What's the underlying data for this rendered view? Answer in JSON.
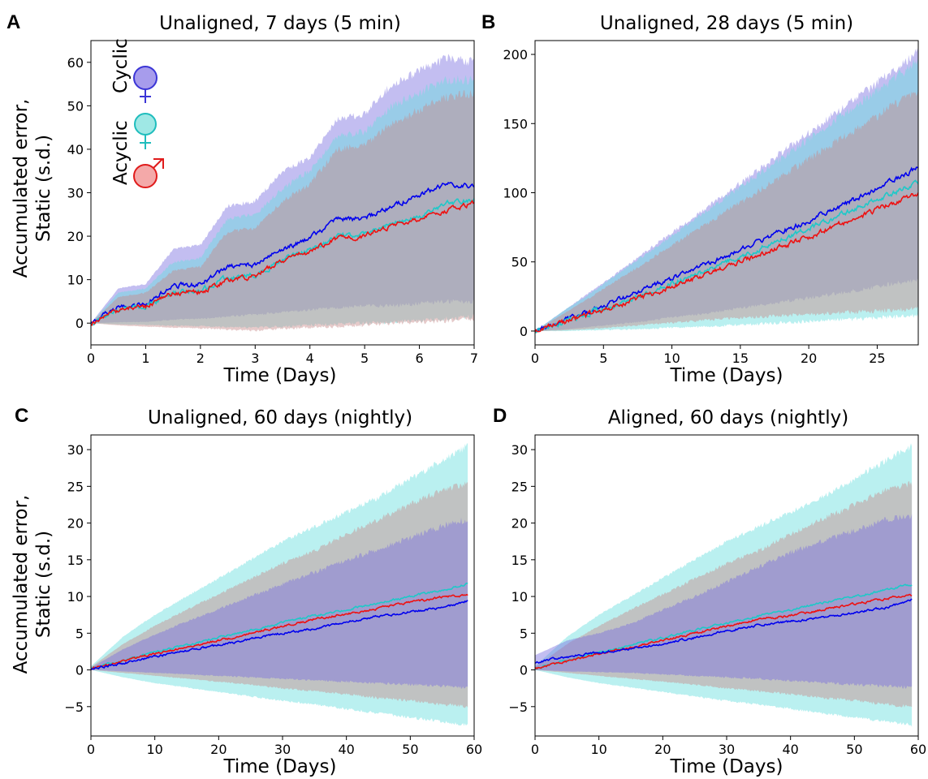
{
  "colors": {
    "cyclic": "#0000ee",
    "cyclic_band": "#7b6fe0",
    "acyclic": "#1fc8c8",
    "acyclic_band": "#66dede",
    "male": "#ee1111",
    "male_band": "#c88a8a",
    "overlap": "#a793c0"
  },
  "legend": {
    "cyclic_label": "Cyclic",
    "acyclic_label": "Acyclic",
    "cyclic_icon": "female-symbol-icon",
    "acyclic_icon": "female-symbol-icon",
    "male_icon": "male-symbol-icon"
  },
  "panels": {
    "A": {
      "letter": "A",
      "title": "Unaligned, 7 days (5 min)",
      "xlabel": "Time (Days)",
      "ylabel_line1": "Accumulated error,",
      "ylabel_line2": "Static (s.d.)"
    },
    "B": {
      "letter": "B",
      "title": "Unaligned, 28 days (5 min)",
      "xlabel": "Time (Days)"
    },
    "C": {
      "letter": "C",
      "title": "Unaligned, 60 days (nightly)",
      "xlabel": "Time (Days)",
      "ylabel_line1": "Accumulated error,",
      "ylabel_line2": "Static (s.d.)"
    },
    "D": {
      "letter": "D",
      "title": "Aligned, 60 days (nightly)",
      "xlabel": "Time (Days)"
    }
  },
  "chart_data": [
    {
      "panel": "A",
      "type": "line",
      "title": "Unaligned, 7 days (5 min)",
      "xlabel": "Time (Days)",
      "ylabel": "Accumulated error, Static (s.d.)",
      "xlim": [
        0,
        7
      ],
      "ylim": [
        -5,
        65
      ],
      "xticks": [
        0,
        1,
        2,
        3,
        4,
        5,
        6,
        7
      ],
      "yticks": [
        0,
        10,
        20,
        30,
        40,
        50,
        60
      ],
      "noise": 0.45,
      "band_noise": 1.2,
      "x": [
        0,
        0.5,
        1,
        1.5,
        2,
        2.5,
        3,
        3.5,
        4,
        4.5,
        5,
        5.5,
        6,
        6.5,
        7
      ],
      "series": [
        {
          "key": "cyclic",
          "mean": [
            0,
            3.5,
            4.5,
            8.5,
            9,
            13,
            13.5,
            17,
            19.5,
            24,
            24,
            27,
            29.5,
            32,
            31.5
          ],
          "upper": [
            0,
            8,
            9,
            17,
            18,
            27,
            28,
            35,
            38,
            47,
            48,
            55,
            58,
            61,
            60
          ],
          "lower": [
            0,
            0.2,
            0.3,
            0.8,
            1,
            1.5,
            2,
            2.5,
            3,
            3.5,
            4,
            4,
            4.5,
            5,
            5
          ]
        },
        {
          "key": "acyclic",
          "mean": [
            0,
            3,
            4,
            7,
            7.5,
            10.5,
            11,
            14.5,
            17,
            20,
            20.5,
            23,
            24.5,
            27.5,
            28.5
          ],
          "upper": [
            0,
            7,
            8,
            14,
            15,
            24,
            25,
            31,
            35,
            43,
            44,
            50,
            53,
            56,
            56
          ],
          "lower": [
            0,
            -0.3,
            -0.4,
            -0.6,
            -0.7,
            -0.9,
            -1,
            -0.8,
            -0.5,
            -0.2,
            0,
            0.3,
            0.6,
            1,
            1.5
          ]
        },
        {
          "key": "male",
          "mean": [
            0,
            3,
            3.8,
            7,
            7.2,
            10,
            10.8,
            14.5,
            16.5,
            19.5,
            20,
            22.5,
            24,
            26,
            27.5
          ],
          "upper": [
            0,
            6,
            7,
            12,
            13,
            21,
            22,
            28,
            32,
            40,
            41,
            46,
            49,
            52,
            53
          ],
          "lower": [
            0,
            -0.5,
            -0.8,
            -1,
            -1.2,
            -1.5,
            -1.7,
            -1.3,
            -1,
            -0.8,
            -0.5,
            0,
            0.2,
            0.5,
            1
          ]
        }
      ]
    },
    {
      "panel": "B",
      "type": "line",
      "title": "Unaligned, 28 days (5 min)",
      "xlabel": "Time (Days)",
      "ylabel": "",
      "xlim": [
        0,
        28
      ],
      "ylim": [
        -10,
        210
      ],
      "xticks": [
        0,
        5,
        10,
        15,
        20,
        25
      ],
      "yticks": [
        0,
        50,
        100,
        150,
        200
      ],
      "noise": 1.5,
      "band_noise": 4,
      "x": [
        0,
        2,
        4,
        6,
        8,
        10,
        12,
        14,
        16,
        18,
        20,
        22,
        24,
        26,
        28
      ],
      "series": [
        {
          "key": "cyclic",
          "mean": [
            0,
            7,
            14,
            22,
            30,
            38,
            46,
            55,
            63,
            72,
            80,
            89,
            98,
            108,
            118
          ],
          "upper": [
            0,
            14,
            28,
            42,
            57,
            71,
            85,
            100,
            114,
            129,
            143,
            158,
            172,
            187,
            202
          ],
          "lower": [
            0,
            1,
            3,
            5,
            7,
            10,
            12,
            15,
            18,
            21,
            24,
            27,
            30,
            34,
            37
          ]
        },
        {
          "key": "acyclic",
          "mean": [
            0,
            6,
            13,
            20,
            27,
            35,
            42,
            50,
            58,
            66,
            74,
            82,
            91,
            99,
            107
          ],
          "upper": [
            0,
            14,
            27,
            41,
            55,
            69,
            83,
            97,
            111,
            125,
            139,
            153,
            167,
            181,
            195
          ],
          "lower": [
            0,
            0,
            0.5,
            1,
            1.5,
            2.5,
            3,
            4,
            5,
            6,
            7,
            8,
            9,
            10,
            11
          ]
        },
        {
          "key": "male",
          "mean": [
            0,
            6,
            12,
            18,
            25,
            32,
            39,
            46,
            54,
            61,
            68,
            76,
            84,
            92,
            100
          ],
          "upper": [
            0,
            12,
            24,
            37,
            49,
            62,
            74,
            87,
            99,
            112,
            124,
            137,
            149,
            162,
            174
          ],
          "lower": [
            0,
            0.5,
            1.5,
            3,
            4.5,
            6,
            7.5,
            9,
            10,
            11,
            12,
            13,
            14,
            15,
            16
          ]
        }
      ]
    },
    {
      "panel": "C",
      "type": "line",
      "title": "Unaligned, 60 days (nightly)",
      "xlabel": "Time (Days)",
      "ylabel": "Accumulated error, Static (s.d.)",
      "xlim": [
        0,
        60
      ],
      "ylim": [
        -9,
        32
      ],
      "xticks": [
        0,
        10,
        20,
        30,
        40,
        50,
        60
      ],
      "yticks": [
        -5,
        0,
        5,
        10,
        15,
        20,
        25,
        30
      ],
      "noise": 0.12,
      "band_noise": 0.5,
      "x": [
        0,
        5,
        10,
        15,
        20,
        25,
        30,
        35,
        40,
        45,
        50,
        55,
        59
      ],
      "series": [
        {
          "key": "acyclic",
          "mean": [
            0.2,
            1.3,
            2.4,
            3.4,
            4.4,
            5.4,
            6.4,
            7.4,
            8.2,
            9.1,
            10,
            10.9,
            11.7
          ],
          "upper": [
            0.5,
            4.5,
            7.5,
            10,
            12.5,
            15,
            17.5,
            19.5,
            21.5,
            23.5,
            26,
            28.5,
            30.5
          ],
          "lower": [
            0,
            -1,
            -1.8,
            -2.4,
            -3,
            -3.6,
            -4.2,
            -4.7,
            -5.3,
            -5.9,
            -6.5,
            -7,
            -7.5
          ]
        },
        {
          "key": "male",
          "mean": [
            0.2,
            1.2,
            2.2,
            3.1,
            4.0,
            5.0,
            5.9,
            6.9,
            7.6,
            8.4,
            9.2,
            9.9,
            10.2
          ],
          "upper": [
            0.4,
            3.5,
            6,
            8.2,
            10.3,
            12.4,
            14.5,
            16.2,
            18.5,
            20.5,
            22.5,
            24.5,
            25.5
          ],
          "lower": [
            0,
            -0.4,
            -0.8,
            -1.2,
            -1.6,
            -2,
            -2.5,
            -2.9,
            -3.3,
            -3.8,
            -4.2,
            -4.7,
            -5
          ]
        },
        {
          "key": "cyclic",
          "mean": [
            0.1,
            0.9,
            1.8,
            2.6,
            3.4,
            4.2,
            5.0,
            5.6,
            6.5,
            7.3,
            7.9,
            8.5,
            9.4
          ],
          "upper": [
            0.3,
            2.8,
            4.8,
            6.6,
            8.3,
            10,
            11.7,
            13.3,
            14.9,
            16.5,
            18,
            19.6,
            20.5
          ],
          "lower": [
            0,
            -0.2,
            -0.4,
            -0.6,
            -0.8,
            -1,
            -1.2,
            -1.4,
            -1.6,
            -1.8,
            -2,
            -2.2,
            -2.4
          ]
        }
      ]
    },
    {
      "panel": "D",
      "type": "line",
      "title": "Aligned, 60 days (nightly)",
      "xlabel": "Time (Days)",
      "ylabel": "",
      "xlim": [
        0,
        60
      ],
      "ylim": [
        -9,
        32
      ],
      "xticks": [
        0,
        10,
        20,
        30,
        40,
        50,
        60
      ],
      "yticks": [
        -5,
        0,
        5,
        10,
        15,
        20,
        25,
        30
      ],
      "noise": 0.12,
      "band_noise": 0.5,
      "x": [
        0,
        5,
        10,
        15,
        20,
        25,
        30,
        35,
        40,
        45,
        50,
        55,
        59
      ],
      "series": [
        {
          "key": "acyclic",
          "mean": [
            0.2,
            1.3,
            2.4,
            3.4,
            4.4,
            5.4,
            6.4,
            7.4,
            8.2,
            9.1,
            10,
            10.9,
            11.7
          ],
          "upper": [
            0.5,
            4.5,
            7.5,
            10,
            12.5,
            15,
            17.5,
            19.5,
            21.5,
            23.5,
            26,
            28.5,
            30.5
          ],
          "lower": [
            0,
            -1,
            -1.8,
            -2.4,
            -3,
            -3.6,
            -4.2,
            -4.7,
            -5.3,
            -5.9,
            -6.5,
            -7,
            -7.5
          ]
        },
        {
          "key": "male",
          "mean": [
            0.2,
            1.2,
            2.2,
            3.1,
            4.0,
            5.0,
            5.9,
            6.9,
            7.4,
            8.2,
            9.0,
            9.7,
            10.2
          ],
          "upper": [
            0.4,
            3.5,
            6,
            8.2,
            10.3,
            12.4,
            14.5,
            16.2,
            18.5,
            20.5,
            22.5,
            24.5,
            25.5
          ],
          "lower": [
            0,
            -0.4,
            -0.8,
            -1.2,
            -1.6,
            -2,
            -2.5,
            -2.9,
            -3.3,
            -3.8,
            -4.2,
            -4.7,
            -5
          ]
        },
        {
          "key": "cyclic",
          "mean": [
            1.0,
            1.8,
            2.4,
            2.9,
            3.6,
            4.4,
            5.3,
            6.1,
            6.6,
            7.1,
            7.8,
            8.5,
            9.5
          ],
          "upper": [
            2,
            4,
            5,
            6.3,
            8.2,
            10,
            12,
            14,
            16,
            17.5,
            19,
            20.5,
            21
          ],
          "lower": [
            0,
            -0.2,
            -0.3,
            -0.4,
            -0.6,
            -0.8,
            -1,
            -1.2,
            -1.5,
            -1.7,
            -2,
            -2.2,
            -2.4
          ]
        }
      ]
    }
  ]
}
